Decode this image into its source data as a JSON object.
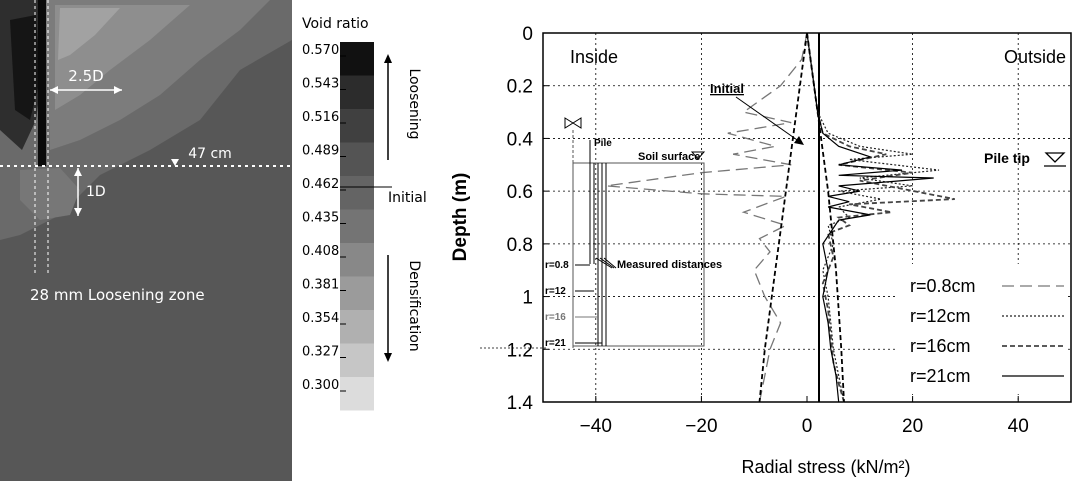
{
  "left_panel": {
    "colorbar_title": "Void ratio",
    "colorbar_ticks": [
      "0.570",
      "0.543",
      "0.516",
      "0.489",
      "0.462",
      "0.435",
      "0.408",
      "0.381",
      "0.354",
      "0.327",
      "0.300"
    ],
    "colorbar_colors": [
      "#111111",
      "#2c2c2c",
      "#404040",
      "#545454",
      "#646464",
      "#747474",
      "#888888",
      "#9b9b9b",
      "#b0b0b0",
      "#c6c6c6",
      "#dcdcdc"
    ],
    "loosening_label": "Loosening",
    "densification_label": "Densification",
    "initial_label": "Initial",
    "annotation_25d": "2.5D",
    "annotation_47cm": "47 cm",
    "annotation_1d": "1D",
    "annotation_zone": "28 mm Loosening zone"
  },
  "chart_data": {
    "type": "line",
    "xlabel": "Radial stress (kN/m²)",
    "ylabel": "Depth (m)",
    "xlim": [
      -50,
      50
    ],
    "ylim": [
      1.4,
      0
    ],
    "x_ticks": [
      -40,
      -20,
      0,
      20,
      40
    ],
    "y_ticks": [
      0,
      0.2,
      0.4,
      0.6,
      0.8,
      1,
      1.2,
      1.4
    ],
    "grid": true,
    "legend_position": "bottom-right",
    "region_labels": {
      "left": "Inside",
      "right": "Outside"
    },
    "annotations": {
      "initial": "Initial",
      "pile_tip": "Pile tip"
    },
    "series": [
      {
        "name": "r=0.8cm",
        "style": "dashed-long",
        "color": "#777777",
        "points": [
          [
            0,
            0
          ],
          [
            -1,
            0.1
          ],
          [
            -5,
            0.2
          ],
          [
            -12,
            0.3
          ],
          [
            -3,
            0.34
          ],
          [
            -15,
            0.38
          ],
          [
            -6,
            0.43
          ],
          [
            -14,
            0.46
          ],
          [
            -3,
            0.5
          ],
          [
            -20,
            0.53
          ],
          [
            -38,
            0.58
          ],
          [
            -20,
            0.61
          ],
          [
            -4,
            0.62
          ],
          [
            -12,
            0.68
          ],
          [
            -4,
            0.73
          ],
          [
            -9,
            0.78
          ],
          [
            -7,
            0.83
          ],
          [
            -10,
            0.9
          ],
          [
            -8,
            1.0
          ],
          [
            -5,
            1.1
          ],
          [
            -7,
            1.2
          ],
          [
            -8,
            1.3
          ],
          [
            -9,
            1.4
          ]
        ]
      },
      {
        "name": "r=12cm",
        "style": "dotted",
        "color": "#222222",
        "points": [
          [
            0,
            0
          ],
          [
            1,
            0.15
          ],
          [
            2,
            0.3
          ],
          [
            4,
            0.38
          ],
          [
            10,
            0.43
          ],
          [
            20,
            0.46
          ],
          [
            8,
            0.48
          ],
          [
            25,
            0.52
          ],
          [
            10,
            0.55
          ],
          [
            20,
            0.58
          ],
          [
            6,
            0.6
          ],
          [
            14,
            0.63
          ],
          [
            6,
            0.66
          ],
          [
            8,
            0.7
          ],
          [
            4,
            0.73
          ],
          [
            5,
            0.8
          ],
          [
            3,
            0.9
          ],
          [
            4,
            1.0
          ],
          [
            4.5,
            1.1
          ],
          [
            5,
            1.2
          ],
          [
            6,
            1.3
          ],
          [
            7,
            1.4
          ]
        ]
      },
      {
        "name": "r=16cm",
        "style": "dashed-short",
        "color": "#444444",
        "points": [
          [
            0,
            0
          ],
          [
            1,
            0.15
          ],
          [
            2,
            0.3
          ],
          [
            3,
            0.38
          ],
          [
            8,
            0.43
          ],
          [
            15,
            0.46
          ],
          [
            6,
            0.5
          ],
          [
            20,
            0.53
          ],
          [
            10,
            0.56
          ],
          [
            28,
            0.63
          ],
          [
            8,
            0.65
          ],
          [
            16,
            0.68
          ],
          [
            6,
            0.7
          ],
          [
            8,
            0.73
          ],
          [
            4,
            0.76
          ],
          [
            5,
            0.85
          ],
          [
            3,
            0.95
          ],
          [
            4,
            1.05
          ],
          [
            4.5,
            1.15
          ],
          [
            5,
            1.25
          ],
          [
            6,
            1.33
          ],
          [
            7,
            1.4
          ]
        ]
      },
      {
        "name": "r=21cm",
        "style": "solid",
        "color": "#000000",
        "points": [
          [
            0,
            0
          ],
          [
            1,
            0.15
          ],
          [
            2,
            0.3
          ],
          [
            3,
            0.38
          ],
          [
            6,
            0.43
          ],
          [
            12,
            0.47
          ],
          [
            6,
            0.5
          ],
          [
            18,
            0.52
          ],
          [
            6,
            0.54
          ],
          [
            24,
            0.55
          ],
          [
            6,
            0.58
          ],
          [
            10,
            0.6
          ],
          [
            4,
            0.62
          ],
          [
            8,
            0.64
          ],
          [
            4,
            0.66
          ],
          [
            12,
            0.69
          ],
          [
            6,
            0.71
          ],
          [
            5,
            0.74
          ],
          [
            3,
            0.8
          ],
          [
            4,
            0.9
          ],
          [
            3,
            1.0
          ],
          [
            4,
            1.1
          ],
          [
            4.5,
            1.2
          ],
          [
            5.5,
            1.3
          ],
          [
            6,
            1.4
          ]
        ]
      },
      {
        "name": "",
        "style": "dashed-short",
        "color": "#000000",
        "role": "initial",
        "points": [
          [
            0,
            0
          ],
          [
            -2,
            0.3
          ],
          [
            -4,
            0.6
          ],
          [
            -6,
            0.9
          ],
          [
            -8,
            1.2
          ],
          [
            -9,
            1.4
          ]
        ]
      },
      {
        "name": "",
        "style": "dashed-short",
        "color": "#000000",
        "role": "initial",
        "points": [
          [
            0,
            0
          ],
          [
            2,
            0.3
          ],
          [
            4,
            0.6
          ],
          [
            5.5,
            0.9
          ],
          [
            6.5,
            1.2
          ],
          [
            7,
            1.4
          ]
        ]
      }
    ]
  },
  "inset": {
    "pile_label": "Pile",
    "soil_surface_label": "Soil surface",
    "measured_label": "Measured distances",
    "distance_labels": [
      "r=0.8",
      "r=12",
      "r=16",
      "r=21"
    ],
    "distance_colors": [
      "#000000",
      "#000000",
      "#777777",
      "#000000"
    ]
  }
}
